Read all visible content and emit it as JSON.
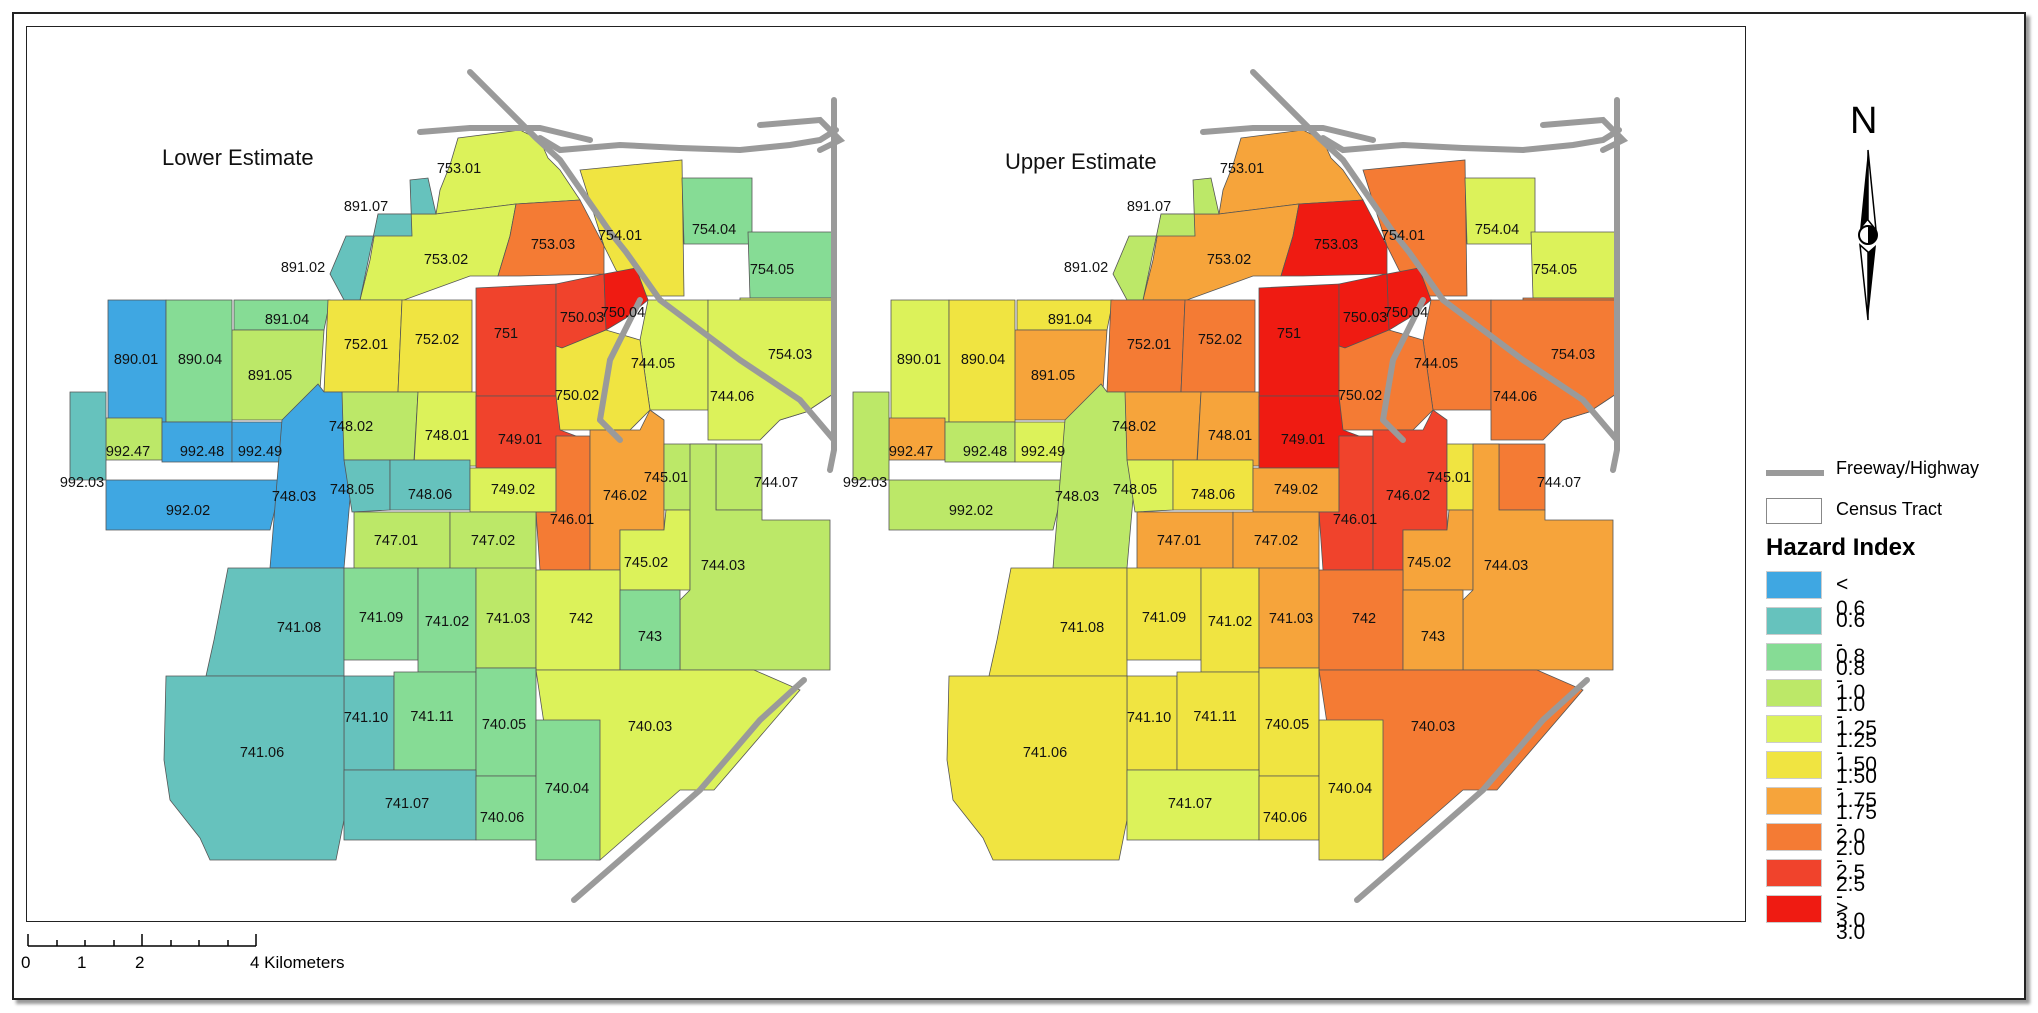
{
  "maps": {
    "left_title": "Lower Estimate",
    "right_title": "Upper Estimate"
  },
  "north": {
    "label": "N"
  },
  "legend": {
    "freeway_label": "Freeway/Highway",
    "tract_label": "Census Tract",
    "title": "Hazard Index",
    "classes": [
      {
        "label": "< 0.6",
        "color": "#3fa7e2"
      },
      {
        "label": "0.6 - 0.8",
        "color": "#66c2bd"
      },
      {
        "label": "0.8 - 1.0",
        "color": "#86dc95"
      },
      {
        "label": "1.0 - 1.25",
        "color": "#bce868"
      },
      {
        "label": "1.25 - 1.50",
        "color": "#dcf25a"
      },
      {
        "label": "1.50 - 1.75",
        "color": "#f0e441"
      },
      {
        "label": "1.75 - 2.0",
        "color": "#f6a43b"
      },
      {
        "label": "2.0 - 2.5",
        "color": "#f47b34"
      },
      {
        "label": "2.5 - 3.0",
        "color": "#f0432c"
      },
      {
        "label": "> 3.0",
        "color": "#ef1b12"
      }
    ]
  },
  "scale": {
    "labels": [
      "0",
      "1",
      "2",
      "4 Kilometers"
    ]
  },
  "tracts": [
    {
      "id": "753.01",
      "lower": 4,
      "upper": 6
    },
    {
      "id": "753.02",
      "lower": 4,
      "upper": 6
    },
    {
      "id": "753.03",
      "lower": 7,
      "upper": 9
    },
    {
      "id": "754.01",
      "lower": 5,
      "upper": 7
    },
    {
      "id": "754.04",
      "lower": 2,
      "upper": 4
    },
    {
      "id": "754.05",
      "lower": 2,
      "upper": 4
    },
    {
      "id": "754.03",
      "lower": 4,
      "upper": 7
    },
    {
      "id": "891.07",
      "lower": 1,
      "upper": 3
    },
    {
      "id": "891.02",
      "lower": 1,
      "upper": 4
    },
    {
      "id": "891.04",
      "lower": 2,
      "upper": 5
    },
    {
      "id": "891.05",
      "lower": 3,
      "upper": 6
    },
    {
      "id": "890.01",
      "lower": 0,
      "upper": 4
    },
    {
      "id": "890.04",
      "lower": 2,
      "upper": 5
    },
    {
      "id": "752.01",
      "lower": 5,
      "upper": 7
    },
    {
      "id": "752.02",
      "lower": 5,
      "upper": 7
    },
    {
      "id": "751",
      "lower": 8,
      "upper": 9
    },
    {
      "id": "750.03",
      "lower": 8,
      "upper": 9
    },
    {
      "id": "750.04",
      "lower": 9,
      "upper": 9
    },
    {
      "id": "744.05",
      "lower": 4,
      "upper": 7
    },
    {
      "id": "744.06",
      "lower": 4,
      "upper": 7
    },
    {
      "id": "750.02",
      "lower": 5,
      "upper": 7
    },
    {
      "id": "748.02",
      "lower": 3,
      "upper": 6
    },
    {
      "id": "748.01",
      "lower": 4,
      "upper": 6
    },
    {
      "id": "749.01",
      "lower": 8,
      "upper": 9
    },
    {
      "id": "992.47",
      "lower": 3,
      "upper": 6
    },
    {
      "id": "992.48",
      "lower": 0,
      "upper": 3
    },
    {
      "id": "992.49",
      "lower": 0,
      "upper": 4
    },
    {
      "id": "992.03",
      "lower": 1,
      "upper": 3
    },
    {
      "id": "992.02",
      "lower": 0,
      "upper": 3
    },
    {
      "id": "748.03",
      "lower": 0,
      "upper": 3
    },
    {
      "id": "748.05",
      "lower": 1,
      "upper": 4
    },
    {
      "id": "748.06",
      "lower": 1,
      "upper": 5
    },
    {
      "id": "749.02",
      "lower": 4,
      "upper": 6
    },
    {
      "id": "746.01",
      "lower": 7,
      "upper": 8
    },
    {
      "id": "746.02",
      "lower": 6,
      "upper": 8
    },
    {
      "id": "745.01",
      "lower": 3,
      "upper": 5
    },
    {
      "id": "744.07",
      "lower": 3,
      "upper": 7
    },
    {
      "id": "747.01",
      "lower": 3,
      "upper": 6
    },
    {
      "id": "747.02",
      "lower": 3,
      "upper": 6
    },
    {
      "id": "745.02",
      "lower": 4,
      "upper": 6
    },
    {
      "id": "744.03",
      "lower": 3,
      "upper": 6
    },
    {
      "id": "741.08",
      "lower": 1,
      "upper": 5
    },
    {
      "id": "741.09",
      "lower": 2,
      "upper": 5
    },
    {
      "id": "741.02",
      "lower": 2,
      "upper": 5
    },
    {
      "id": "741.03",
      "lower": 3,
      "upper": 6
    },
    {
      "id": "742",
      "lower": 4,
      "upper": 7
    },
    {
      "id": "743",
      "lower": 2,
      "upper": 6
    },
    {
      "id": "741.10",
      "lower": 1,
      "upper": 5
    },
    {
      "id": "741.11",
      "lower": 2,
      "upper": 5
    },
    {
      "id": "740.05",
      "lower": 2,
      "upper": 5
    },
    {
      "id": "740.03",
      "lower": 4,
      "upper": 7
    },
    {
      "id": "741.06",
      "lower": 1,
      "upper": 5
    },
    {
      "id": "741.07",
      "lower": 1,
      "upper": 4
    },
    {
      "id": "740.06",
      "lower": 2,
      "upper": 5
    },
    {
      "id": "740.04",
      "lower": 2,
      "upper": 5
    }
  ]
}
